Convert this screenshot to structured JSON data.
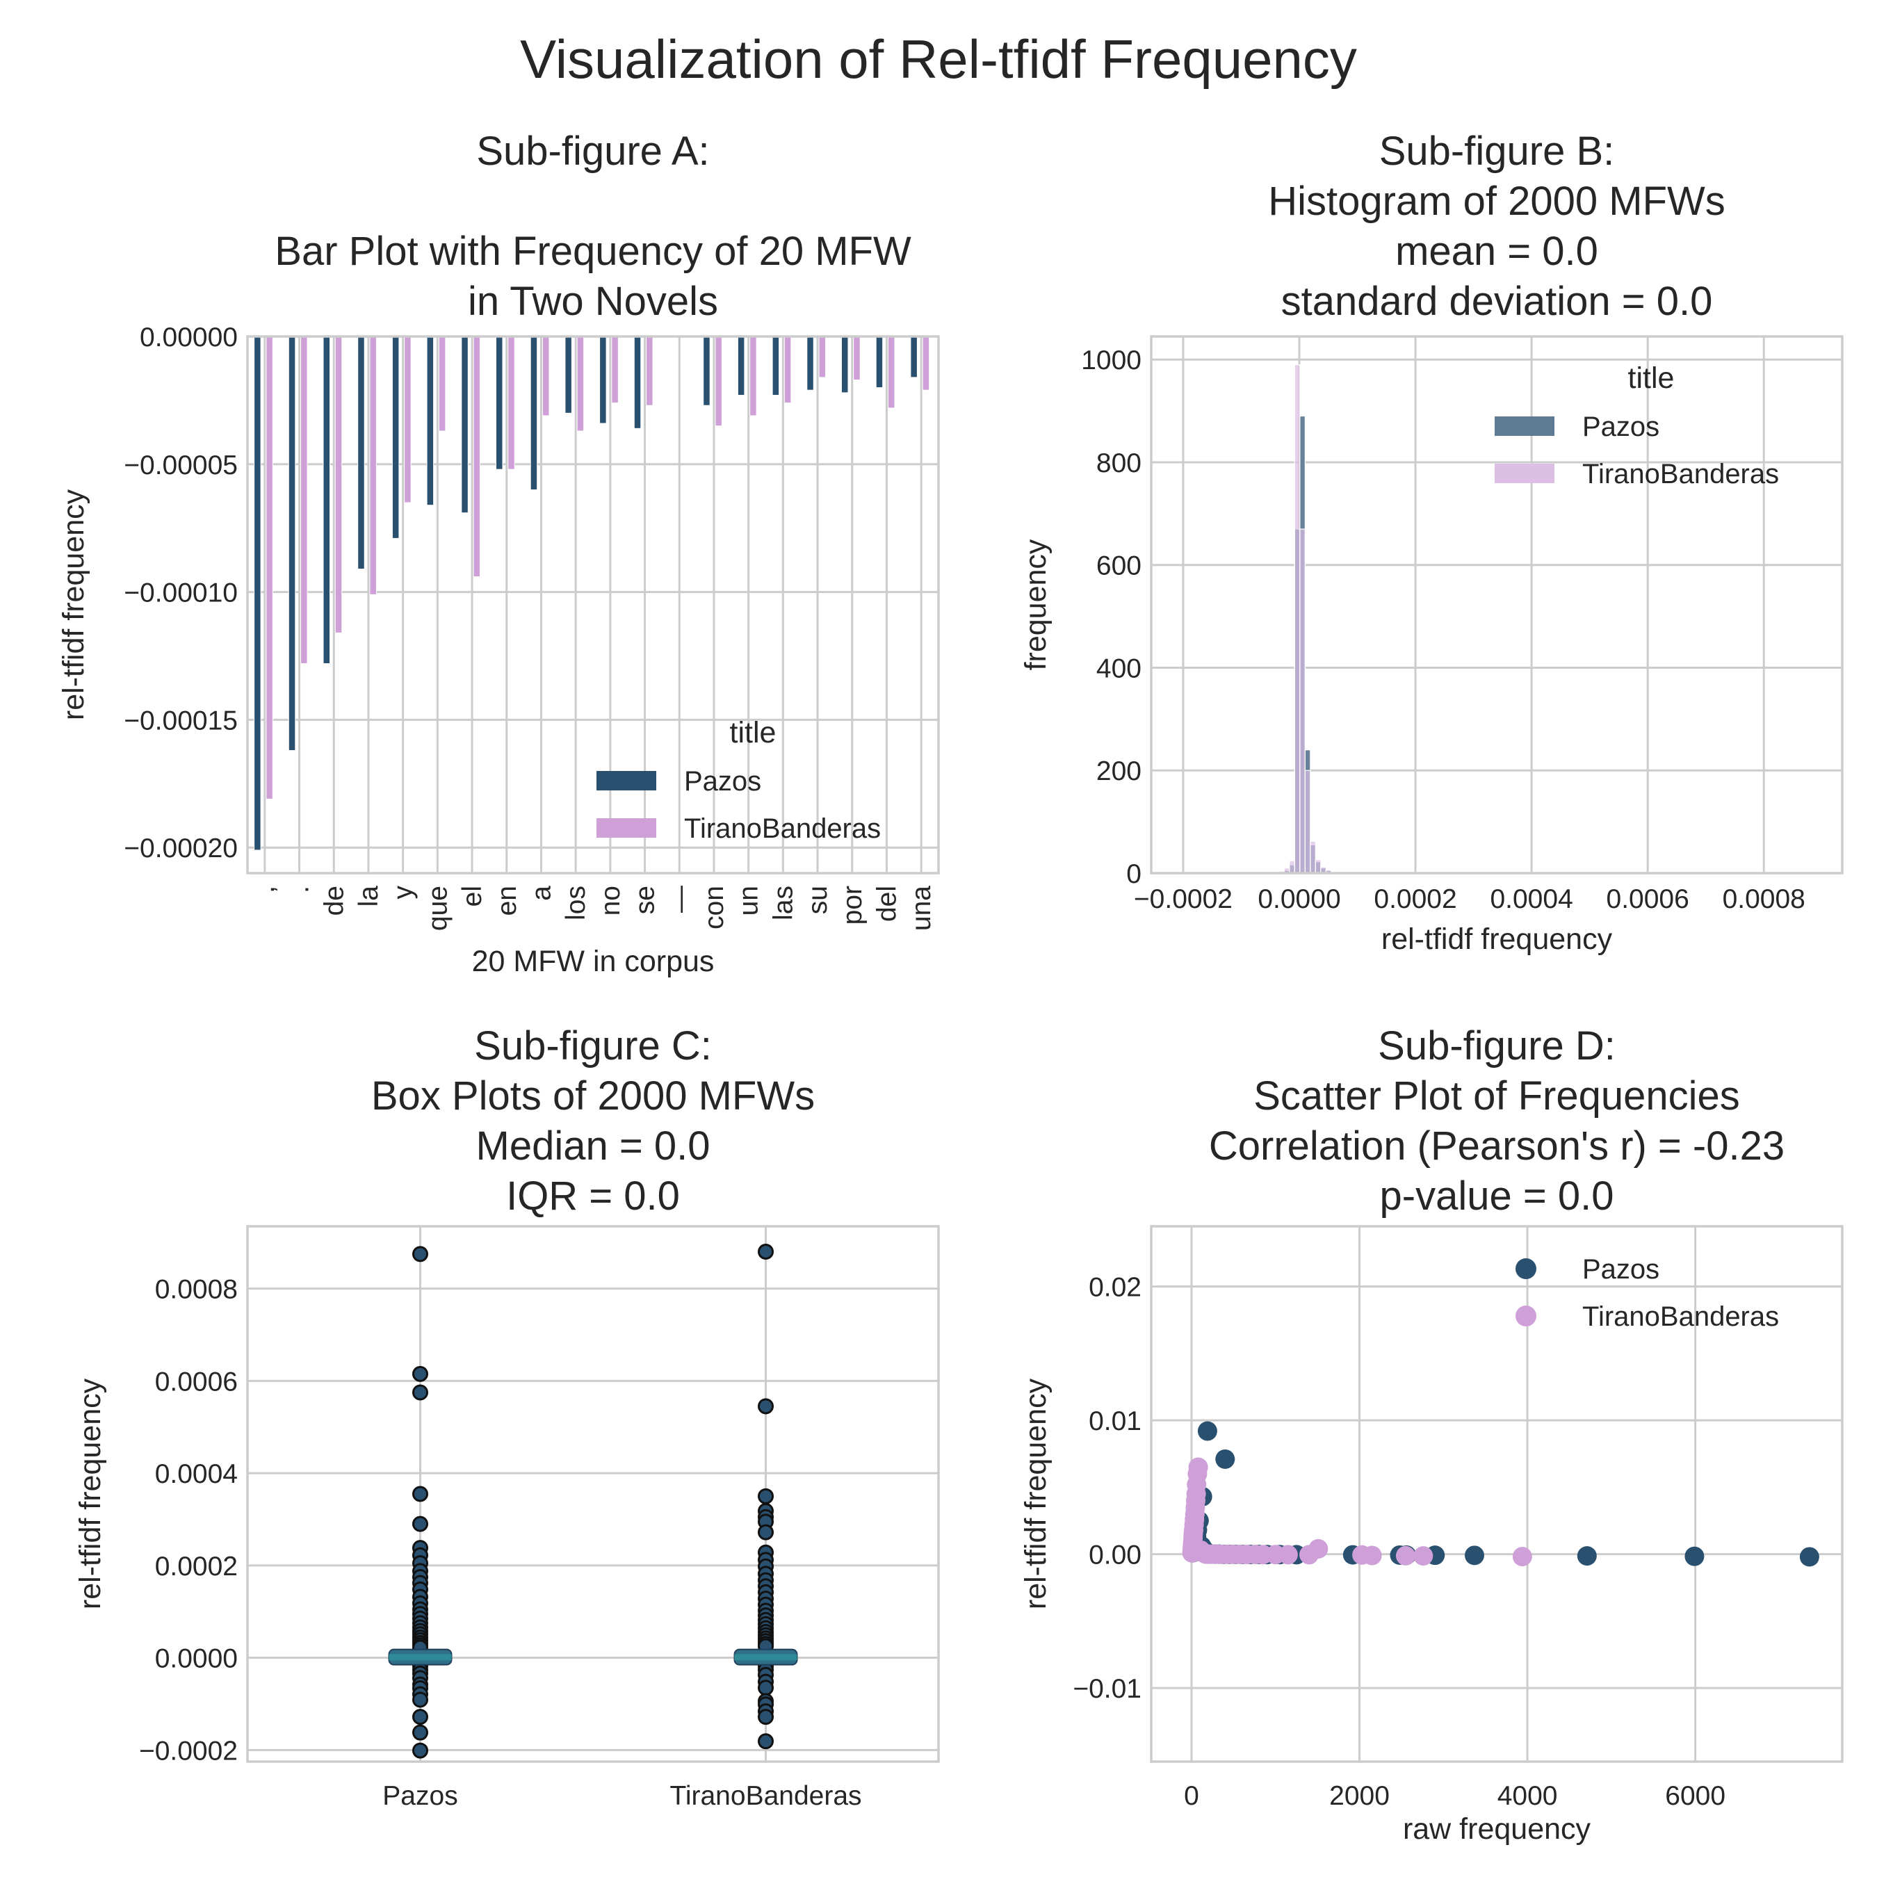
{
  "figure": {
    "title": "Visualization of Rel-tfidf Frequency"
  },
  "colors": {
    "Pazos": "#2a5070",
    "TiranoBanderas": "#cfa0d8",
    "Pazos_hist": "#5f7b93",
    "TiranoBanderas_hist": "#ddbfe6",
    "median_line": "#2e8b95",
    "grid": "#cccccc",
    "text": "#262626"
  },
  "chart_data": [
    {
      "id": "A",
      "type": "bar",
      "title_lines": [
        "Sub-figure A:",
        "",
        "Bar Plot with Frequency of 20 MFW",
        "in Two Novels"
      ],
      "xlabel": "20 MFW in corpus",
      "ylabel": "rel-tfidf frequency",
      "ylim": [
        -0.00021,
        0.0
      ],
      "yticks": [
        0.0,
        -5e-05,
        -0.0001,
        -0.00015,
        -0.0002
      ],
      "ytick_labels": [
        "0.00000",
        "−0.00005",
        "−0.00010",
        "−0.00015",
        "−0.00020"
      ],
      "categories": [
        ",",
        ".",
        "de",
        "la",
        "y",
        "que",
        "el",
        "en",
        "a",
        "los",
        "no",
        "se",
        "—",
        "con",
        "un",
        "las",
        "su",
        "por",
        "del",
        "una"
      ],
      "series": [
        {
          "name": "Pazos",
          "values": [
            -0.000201,
            -0.000162,
            -0.000128,
            -9.1e-05,
            -7.9e-05,
            -6.6e-05,
            -6.9e-05,
            -5.2e-05,
            -6e-05,
            -3e-05,
            -3.4e-05,
            -3.6e-05,
            0.0,
            -2.7e-05,
            -2.3e-05,
            -2.3e-05,
            -2.1e-05,
            -2.2e-05,
            -2e-05,
            -1.6e-05
          ]
        },
        {
          "name": "TiranoBanderas",
          "values": [
            -0.000181,
            -0.000128,
            -0.000116,
            -0.000101,
            -6.5e-05,
            -3.7e-05,
            -9.4e-05,
            -5.2e-05,
            -3.1e-05,
            -3.7e-05,
            -2.6e-05,
            -2.7e-05,
            0.0,
            -3.5e-05,
            -3.1e-05,
            -2.6e-05,
            -1.6e-05,
            -1.7e-05,
            -2.8e-05,
            -2.1e-05
          ]
        }
      ],
      "legend": {
        "title": "title",
        "position": "lower right"
      },
      "grid": true
    },
    {
      "id": "B",
      "type": "histogram",
      "title_lines": [
        "Sub-figure B:",
        "Histogram of 2000 MFWs",
        "mean =  0.0",
        "standard deviation = 0.0"
      ],
      "xlabel": "rel-tfidf frequency",
      "ylabel": "frequency",
      "xlim": [
        -0.000255,
        0.000935
      ],
      "ylim": [
        0,
        1045
      ],
      "xticks": [
        -0.0002,
        0.0,
        0.0002,
        0.0004,
        0.0006,
        0.0008
      ],
      "xtick_labels": [
        "−0.0002",
        "0.0000",
        "0.0002",
        "0.0004",
        "0.0006",
        "0.0008"
      ],
      "yticks": [
        0,
        200,
        400,
        600,
        800,
        1000
      ],
      "ytick_labels": [
        "0",
        "200",
        "400",
        "600",
        "800",
        "1000"
      ],
      "series": [
        {
          "name": "Pazos",
          "bins": [
            [
              -3.5e-05,
              -2.6e-05,
              2
            ],
            [
              -2.6e-05,
              -1.7e-05,
              5
            ],
            [
              -1.7e-05,
              -8e-06,
              16
            ],
            [
              -8e-06,
              1e-06,
              670
            ],
            [
              1e-06,
              1e-05,
              890
            ],
            [
              1e-05,
              1.9e-05,
              240
            ],
            [
              1.9e-05,
              2.8e-05,
              55
            ],
            [
              2.8e-05,
              3.7e-05,
              22
            ],
            [
              3.7e-05,
              4.6e-05,
              10
            ],
            [
              4.6e-05,
              5.5e-05,
              5
            ],
            [
              5.5e-05,
              6.4e-05,
              3
            ]
          ]
        },
        {
          "name": "TiranoBanderas",
          "bins": [
            [
              -3.5e-05,
              -2.6e-05,
              4
            ],
            [
              -2.6e-05,
              -1.7e-05,
              10
            ],
            [
              -1.7e-05,
              -8e-06,
              24
            ],
            [
              -8e-06,
              1e-06,
              990
            ],
            [
              1e-06,
              1e-05,
              670
            ],
            [
              1e-05,
              1.9e-05,
              200
            ],
            [
              1.9e-05,
              2.8e-05,
              62
            ],
            [
              2.8e-05,
              3.7e-05,
              26
            ],
            [
              3.7e-05,
              4.6e-05,
              12
            ],
            [
              4.6e-05,
              5.5e-05,
              6
            ],
            [
              5.5e-05,
              6.4e-05,
              3
            ]
          ]
        }
      ],
      "legend": {
        "title": "title",
        "position": "upper right"
      },
      "grid": true
    },
    {
      "id": "C",
      "type": "box",
      "title_lines": [
        "Sub-figure C:",
        "Box Plots of 2000 MFWs",
        "Median =  0.0",
        "IQR = 0.0"
      ],
      "ylabel": "rel-tfidf frequency",
      "ylim": [
        -0.000225,
        0.000935
      ],
      "yticks": [
        -0.0002,
        0.0,
        0.0002,
        0.0004,
        0.0006,
        0.0008
      ],
      "ytick_labels": [
        "−0.0002",
        "0.0000",
        "0.0002",
        "0.0004",
        "0.0006",
        "0.0008"
      ],
      "categories": [
        "Pazos",
        "TiranoBanderas"
      ],
      "boxes": [
        {
          "name": "Pazos",
          "q1": -2e-06,
          "median": 1.2e-06,
          "q3": 5e-06,
          "outliers": [
            0.000875,
            0.000615,
            0.000575,
            0.000355,
            0.00029,
            0.000238,
            0.000222,
            0.000205,
            0.000188,
            0.000175,
            0.000162,
            0.000148,
            0.000132,
            0.000118,
            0.000105,
            9.5e-05,
            8.5e-05,
            7.5e-05,
            6.6e-05,
            5.8e-05,
            5.1e-05,
            4.4e-05,
            3.8e-05,
            3.2e-05,
            2.7e-05,
            2.2e-05,
            -1.8e-05,
            -2.6e-05,
            -3.4e-05,
            -4.4e-05,
            -5.8e-05,
            -6.6e-05,
            -7.9e-05,
            -9.1e-05,
            -0.000128,
            -0.000162,
            -0.000201
          ]
        },
        {
          "name": "TiranoBanderas",
          "q1": -2e-06,
          "median": 1.2e-06,
          "q3": 5e-06,
          "outliers": [
            0.00088,
            0.000545,
            0.00035,
            0.000318,
            0.000305,
            0.000295,
            0.000272,
            0.000228,
            0.000212,
            0.000198,
            0.000182,
            0.000168,
            0.000155,
            0.000142,
            0.000128,
            0.000115,
            0.000102,
            9.2e-05,
            8.2e-05,
            7.3e-05,
            6.4e-05,
            5.6e-05,
            4.9e-05,
            4.2e-05,
            3.6e-05,
            3e-05,
            2.5e-05,
            -1.8e-05,
            -2.6e-05,
            -3.7e-05,
            -5.2e-05,
            -6.5e-05,
            -9.4e-05,
            -0.000101,
            -0.000116,
            -0.000128,
            -0.000181
          ]
        }
      ],
      "grid": true
    },
    {
      "id": "D",
      "type": "scatter",
      "title_lines": [
        "Sub-figure D:",
        "Scatter Plot of Frequencies",
        "Correlation (Pearson's r) =  -0.23",
        "p-value = 0.0"
      ],
      "xlabel": "raw frequency",
      "ylabel": "rel-tfidf frequency",
      "xlim": [
        -480,
        7750
      ],
      "ylim": [
        -0.0155,
        0.0245
      ],
      "xticks": [
        0,
        2000,
        4000,
        6000
      ],
      "xtick_labels": [
        "0",
        "2000",
        "4000",
        "6000"
      ],
      "yticks": [
        -0.01,
        0.0,
        0.01,
        0.02
      ],
      "ytick_labels": [
        "−0.01",
        "0.00",
        "0.01",
        "0.02"
      ],
      "series": [
        {
          "name": "Pazos",
          "points": [
            [
              7360,
              -0.0002
            ],
            [
              5990,
              -0.00016
            ],
            [
              4710,
              -0.00013
            ],
            [
              3370,
              -9e-05
            ],
            [
              2900,
              -8e-05
            ],
            [
              2560,
              -7e-05
            ],
            [
              2480,
              -7e-05
            ],
            [
              1920,
              -5e-05
            ],
            [
              1250,
              -4e-05
            ],
            [
              1050,
              -3e-05
            ],
            [
              900,
              -3e-05
            ],
            [
              800,
              -2e-05
            ],
            [
              700,
              -2e-05
            ],
            [
              600,
              -2e-05
            ],
            [
              520,
              -1e-05
            ],
            [
              450,
              -1e-05
            ],
            [
              380,
              -1e-05
            ],
            [
              330,
              0.0
            ],
            [
              280,
              0.0
            ],
            [
              240,
              0.0
            ],
            [
              200,
              0.0
            ],
            [
              170,
              0.0002
            ],
            [
              140,
              0.0004
            ],
            [
              120,
              0.0006
            ],
            [
              190,
              0.0092
            ],
            [
              400,
              0.0071
            ],
            [
              130,
              0.0043
            ],
            [
              90,
              0.0025
            ],
            [
              70,
              0.0018
            ],
            [
              60,
              0.0013
            ],
            [
              50,
              0.001
            ],
            [
              40,
              0.0008
            ],
            [
              30,
              0.0006
            ],
            [
              25,
              0.0004
            ],
            [
              20,
              0.0003
            ],
            [
              15,
              0.0002
            ],
            [
              10,
              0.0001
            ]
          ]
        },
        {
          "name": "TiranoBanderas",
          "points": [
            [
              3940,
              -0.00018
            ],
            [
              2760,
              -0.00013
            ],
            [
              2550,
              -0.00012
            ],
            [
              2150,
              -0.0001
            ],
            [
              2030,
              -6e-05
            ],
            [
              1510,
              0.0004
            ],
            [
              1400,
              -4e-05
            ],
            [
              1150,
              -4e-05
            ],
            [
              1000,
              -3e-05
            ],
            [
              850,
              -3e-05
            ],
            [
              760,
              -2e-05
            ],
            [
              660,
              -2e-05
            ],
            [
              580,
              -2e-05
            ],
            [
              500,
              -1e-05
            ],
            [
              430,
              -1e-05
            ],
            [
              360,
              -1e-05
            ],
            [
              300,
              0.0
            ],
            [
              250,
              0.0
            ],
            [
              210,
              0.0
            ],
            [
              170,
              0.0
            ],
            [
              140,
              0.0001
            ],
            [
              110,
              0.0003
            ],
            [
              80,
              0.0065
            ],
            [
              70,
              0.006
            ],
            [
              60,
              0.0052
            ],
            [
              55,
              0.0045
            ],
            [
              50,
              0.004
            ],
            [
              45,
              0.0035
            ],
            [
              40,
              0.003
            ],
            [
              35,
              0.0026
            ],
            [
              30,
              0.0022
            ],
            [
              25,
              0.0018
            ],
            [
              20,
              0.0015
            ],
            [
              18,
              0.0012
            ],
            [
              15,
              0.0009
            ],
            [
              12,
              0.0007
            ],
            [
              10,
              0.0005
            ],
            [
              8,
              0.0003
            ],
            [
              5,
              0.0001
            ]
          ]
        }
      ],
      "legend": {
        "position": "upper right"
      },
      "grid": true
    }
  ]
}
